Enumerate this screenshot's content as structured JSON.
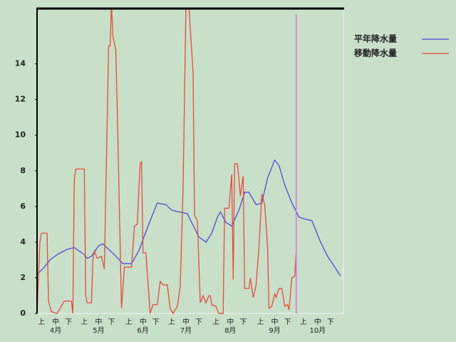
{
  "chart_data": {
    "type": "line",
    "background": "#c8e0c8",
    "xlim": [
      0,
      214
    ],
    "ylim": [
      0,
      17.1
    ],
    "yticks": [
      0,
      2,
      4,
      6,
      8,
      10,
      12,
      14
    ],
    "xticks": [
      {
        "value": 3,
        "label": "上"
      },
      {
        "value": 13,
        "label": "中"
      },
      {
        "value": 22,
        "label": "下"
      },
      {
        "value": 33,
        "label": "上"
      },
      {
        "value": 43,
        "label": "中"
      },
      {
        "value": 52,
        "label": "下"
      },
      {
        "value": 64,
        "label": "上"
      },
      {
        "value": 74,
        "label": "中"
      },
      {
        "value": 83,
        "label": "下"
      },
      {
        "value": 94,
        "label": "上"
      },
      {
        "value": 104,
        "label": "中"
      },
      {
        "value": 113,
        "label": "下"
      },
      {
        "value": 125,
        "label": "上"
      },
      {
        "value": 135,
        "label": "中"
      },
      {
        "value": 144,
        "label": "下"
      },
      {
        "value": 156,
        "label": "上"
      },
      {
        "value": 166,
        "label": "中"
      },
      {
        "value": 175,
        "label": "下"
      },
      {
        "value": 186,
        "label": "上"
      },
      {
        "value": 196,
        "label": "中"
      },
      {
        "value": 205,
        "label": "下"
      }
    ],
    "month_ticks": [
      {
        "value": 13,
        "label": "4月"
      },
      {
        "value": 43,
        "label": "5月"
      },
      {
        "value": 74,
        "label": "6月"
      },
      {
        "value": 104,
        "label": "7月"
      },
      {
        "value": 135,
        "label": "8月"
      },
      {
        "value": 166,
        "label": "9月"
      },
      {
        "value": 196,
        "label": "10月"
      }
    ],
    "marker_x": 181,
    "marker_color": "#e070e0",
    "series": [
      {
        "name": "平年降水量",
        "color": "#4a4ae0",
        "x": [
          0,
          4,
          9,
          14,
          21,
          26,
          33,
          35,
          38,
          43,
          46,
          54,
          60,
          66,
          71,
          78,
          84,
          90,
          94,
          99,
          105,
          108,
          113,
          118,
          122,
          126,
          128,
          132,
          136,
          141,
          145,
          148,
          153,
          157,
          161,
          166,
          169,
          173,
          178,
          183,
          187,
          192,
          198,
          203,
          208,
          212
        ],
        "values": [
          2.2,
          2.5,
          3.0,
          3.3,
          3.6,
          3.7,
          3.3,
          3.1,
          3.2,
          3.8,
          3.9,
          3.3,
          2.8,
          2.8,
          3.5,
          5.0,
          6.2,
          6.1,
          5.8,
          5.7,
          5.6,
          5.1,
          4.3,
          4.0,
          4.5,
          5.4,
          5.7,
          5.1,
          4.9,
          5.8,
          6.8,
          6.8,
          6.1,
          6.2,
          7.6,
          8.6,
          8.3,
          7.2,
          6.2,
          5.4,
          5.3,
          5.2,
          4.0,
          3.2,
          2.6,
          2.1
        ]
      },
      {
        "name": "移動降水量",
        "color": "#e84a3a",
        "x": [
          0,
          2,
          3,
          7,
          8,
          10,
          14,
          19,
          24,
          25,
          26,
          27,
          33,
          34,
          35,
          38,
          39,
          40,
          42,
          45,
          47,
          50,
          51,
          52,
          53,
          55,
          56,
          59,
          61,
          66,
          68,
          70,
          72,
          73,
          74,
          76,
          79,
          81,
          84,
          86,
          88,
          91,
          93,
          95,
          98,
          100,
          102,
          104,
          106,
          109,
          110,
          112,
          114,
          116,
          118,
          120,
          121,
          122,
          125,
          127,
          130,
          131,
          134,
          136,
          137,
          138,
          140,
          142,
          144,
          145,
          148,
          149,
          151,
          153,
          155,
          157,
          159,
          161,
          162,
          164,
          166,
          167,
          169,
          171,
          173,
          175,
          176,
          178,
          180,
          181
        ],
        "values": [
          0,
          4.0,
          4.5,
          4.5,
          0.7,
          0.1,
          0,
          0.7,
          0.7,
          0,
          7.5,
          8.1,
          8.1,
          1,
          0.6,
          0.6,
          3,
          3.5,
          3.1,
          3.2,
          2.5,
          15,
          15,
          17.3,
          15.5,
          14.8,
          11.5,
          0.3,
          2.6,
          2.6,
          4.9,
          5.0,
          8.4,
          8.5,
          3.4,
          3.4,
          0,
          0.5,
          0.5,
          1.8,
          1.6,
          1.6,
          0.3,
          0,
          0.4,
          1.5,
          7,
          17.3,
          17.3,
          13.5,
          5.5,
          5.2,
          0.6,
          1,
          0.6,
          1,
          1,
          0.5,
          0.4,
          0,
          0,
          5.9,
          5.9,
          7.8,
          1.9,
          8.4,
          8.4,
          6.6,
          7.7,
          1.4,
          1.4,
          2.0,
          0.9,
          1.6,
          3.7,
          6.7,
          6.1,
          3.8,
          0.3,
          0.4,
          1.1,
          0.9,
          1.4,
          1.4,
          0.4,
          0.5,
          0.2,
          2.0,
          2.1,
          3.5
        ]
      }
    ]
  }
}
